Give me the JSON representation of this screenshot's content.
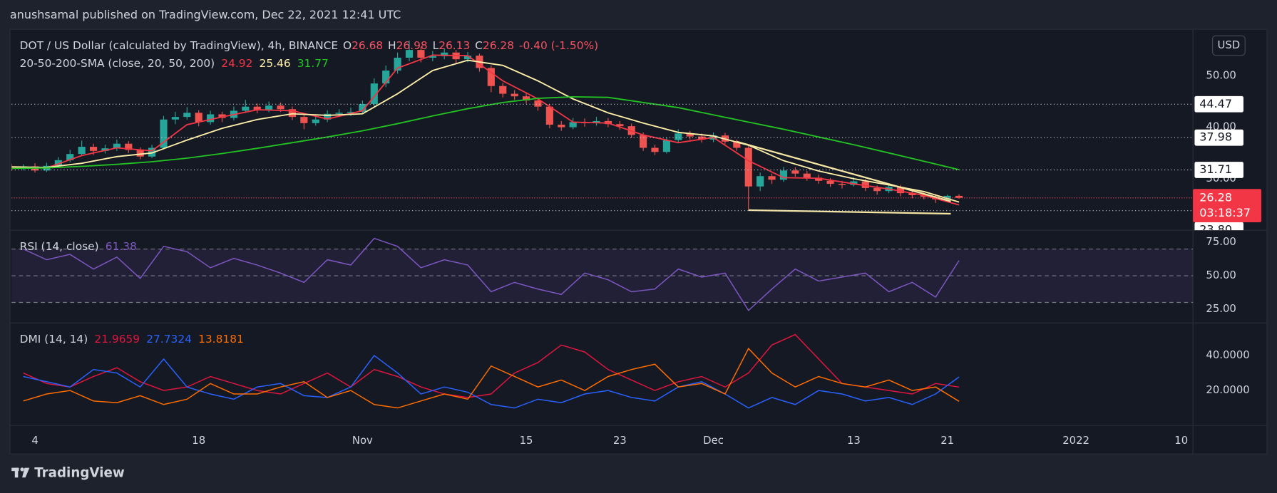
{
  "header": {
    "title": "anushsamal published on TradingView.com, Dec 22, 2021 12:41 UTC"
  },
  "footer": {
    "brand": "TradingView"
  },
  "currency": "USD",
  "chart_data": [
    {
      "type": "candlestick",
      "title": "DOT / US Dollar (calculated by TradingView), 4h, BINANCE",
      "quote_labels": [
        "O",
        "H",
        "L",
        "C"
      ],
      "change": "-0.40 (-1.50%)",
      "countdown": "03:18:37",
      "up_color": "#26a69a",
      "down_color": "#ef5350",
      "xlim": [
        1,
        102
      ],
      "xticks": [
        {
          "value": 3,
          "label": "4"
        },
        {
          "value": 17,
          "label": "18"
        },
        {
          "value": 31,
          "label": "Nov"
        },
        {
          "value": 45,
          "label": "15"
        },
        {
          "value": 53,
          "label": "23"
        },
        {
          "value": 61,
          "label": "Dec"
        },
        {
          "value": 73,
          "label": "13"
        },
        {
          "value": 81,
          "label": "21"
        },
        {
          "value": 92,
          "label": "2022"
        },
        {
          "value": 101,
          "label": "10"
        }
      ],
      "ylim": [
        20,
        58.7
      ],
      "yticks": [
        {
          "value": 30,
          "label": "30.00"
        },
        {
          "value": 40,
          "label": "40.00"
        },
        {
          "value": 50,
          "label": "50.00"
        }
      ],
      "levels": [
        44.47,
        37.98,
        31.71,
        {
          "value": 23.8,
          "label": "23.80"
        }
      ],
      "x": [
        1,
        2,
        3,
        4,
        5,
        6,
        7,
        8,
        9,
        10,
        11,
        12,
        13,
        14,
        15,
        16,
        17,
        18,
        19,
        20,
        21,
        22,
        23,
        24,
        25,
        26,
        27,
        28,
        29,
        30,
        31,
        32,
        33,
        34,
        35,
        36,
        37,
        38,
        39,
        40,
        41,
        42,
        43,
        44,
        45,
        46,
        47,
        48,
        49,
        50,
        51,
        52,
        53,
        54,
        55,
        56,
        57,
        58,
        59,
        60,
        61,
        62,
        63,
        64,
        65,
        66,
        67,
        68,
        69,
        70,
        71,
        72,
        73,
        74,
        75,
        76,
        77,
        78,
        79,
        80,
        81,
        82
      ],
      "candles": [
        [
          32.2,
          32.9,
          31.5,
          32.0
        ],
        [
          32.0,
          32.8,
          31.6,
          32.4
        ],
        [
          32.4,
          33.0,
          31.2,
          31.6
        ],
        [
          31.6,
          33.1,
          31.3,
          32.5
        ],
        [
          32.5,
          34.2,
          32.1,
          33.6
        ],
        [
          33.6,
          35.6,
          33.2,
          34.8
        ],
        [
          34.8,
          37.4,
          34.4,
          36.2
        ],
        [
          36.2,
          36.8,
          34.6,
          35.4
        ],
        [
          35.4,
          36.6,
          34.9,
          35.9
        ],
        [
          35.9,
          37.6,
          35.4,
          36.8
        ],
        [
          36.8,
          37.3,
          35.0,
          35.6
        ],
        [
          35.6,
          36.1,
          33.8,
          34.3
        ],
        [
          34.3,
          36.6,
          34.0,
          36.0
        ],
        [
          36.0,
          42.2,
          35.7,
          41.5
        ],
        [
          41.5,
          43.0,
          40.6,
          42.0
        ],
        [
          42.0,
          43.9,
          41.5,
          42.8
        ],
        [
          42.8,
          43.3,
          40.2,
          41.0
        ],
        [
          41.0,
          43.2,
          40.5,
          42.5
        ],
        [
          42.5,
          43.0,
          41.0,
          41.8
        ],
        [
          41.8,
          44.0,
          41.3,
          43.2
        ],
        [
          43.2,
          45.3,
          42.8,
          44.0
        ],
        [
          44.0,
          44.6,
          42.7,
          43.3
        ],
        [
          43.3,
          45.0,
          42.9,
          44.2
        ],
        [
          44.2,
          44.8,
          43.0,
          43.5
        ],
        [
          43.5,
          44.0,
          41.4,
          42.0
        ],
        [
          42.0,
          42.5,
          39.6,
          40.8
        ],
        [
          40.8,
          42.2,
          40.3,
          41.5
        ],
        [
          41.5,
          43.3,
          41.0,
          42.6
        ],
        [
          42.6,
          43.5,
          42.0,
          42.8
        ],
        [
          42.8,
          43.8,
          42.2,
          43.0
        ],
        [
          43.0,
          45.2,
          42.6,
          44.5
        ],
        [
          44.5,
          49.5,
          44.0,
          48.5
        ],
        [
          48.5,
          52.0,
          47.8,
          51.0
        ],
        [
          51.0,
          54.5,
          50.4,
          53.5
        ],
        [
          53.5,
          56.8,
          52.8,
          55.0
        ],
        [
          55.0,
          55.6,
          52.6,
          53.5
        ],
        [
          53.5,
          54.8,
          52.8,
          53.8
        ],
        [
          53.8,
          55.3,
          53.2,
          54.5
        ],
        [
          54.5,
          55.0,
          52.4,
          53.2
        ],
        [
          53.2,
          54.6,
          52.6,
          53.9
        ],
        [
          53.9,
          54.3,
          50.8,
          51.5
        ],
        [
          51.5,
          52.0,
          46.8,
          48.0
        ],
        [
          48.0,
          48.6,
          45.8,
          46.5
        ],
        [
          46.5,
          47.2,
          45.3,
          46.0
        ],
        [
          46.0,
          46.8,
          44.6,
          45.2
        ],
        [
          45.2,
          45.8,
          43.2,
          44.0
        ],
        [
          44.0,
          44.5,
          39.8,
          40.5
        ],
        [
          40.5,
          41.2,
          39.3,
          40.0
        ],
        [
          40.0,
          41.8,
          39.6,
          41.0
        ],
        [
          41.0,
          41.7,
          40.1,
          40.8
        ],
        [
          40.8,
          42.0,
          40.3,
          41.2
        ],
        [
          41.2,
          41.8,
          40.0,
          40.6
        ],
        [
          40.6,
          41.2,
          39.5,
          40.2
        ],
        [
          40.2,
          40.7,
          37.9,
          38.5
        ],
        [
          38.5,
          39.0,
          35.4,
          36.0
        ],
        [
          36.0,
          36.6,
          34.6,
          35.2
        ],
        [
          35.2,
          38.1,
          34.9,
          37.5
        ],
        [
          37.5,
          39.6,
          37.0,
          38.8
        ],
        [
          38.8,
          39.3,
          37.6,
          38.2
        ],
        [
          38.2,
          38.8,
          37.0,
          37.6
        ],
        [
          37.6,
          39.0,
          37.1,
          38.4
        ],
        [
          38.4,
          38.9,
          36.7,
          37.2
        ],
        [
          37.2,
          37.6,
          35.4,
          36.0
        ],
        [
          36.0,
          36.4,
          24.0,
          28.5
        ],
        [
          28.5,
          31.2,
          27.6,
          30.5
        ],
        [
          30.5,
          31.0,
          29.0,
          29.8
        ],
        [
          29.8,
          32.3,
          29.4,
          31.6
        ],
        [
          31.6,
          32.2,
          30.4,
          31.0
        ],
        [
          31.0,
          31.5,
          29.6,
          30.2
        ],
        [
          30.2,
          30.8,
          29.0,
          29.6
        ],
        [
          29.6,
          30.1,
          28.4,
          29.0
        ],
        [
          29.0,
          29.6,
          28.1,
          28.8
        ],
        [
          28.8,
          30.3,
          28.5,
          29.5
        ],
        [
          29.5,
          29.9,
          27.6,
          28.2
        ],
        [
          28.2,
          28.7,
          26.9,
          27.6
        ],
        [
          27.6,
          29.0,
          27.2,
          28.4
        ],
        [
          28.4,
          28.8,
          26.6,
          27.2
        ],
        [
          27.2,
          27.6,
          26.2,
          26.8
        ],
        [
          26.8,
          27.3,
          26.0,
          26.5
        ],
        [
          26.5,
          27.0,
          25.3,
          26.0
        ],
        [
          26.0,
          26.9,
          25.7,
          26.68
        ],
        [
          26.68,
          26.98,
          26.13,
          26.28
        ]
      ],
      "indicator": {
        "name": "20-50-200-SMA (close, 20, 50, 200)",
        "x": [
          1,
          4,
          7,
          10,
          13,
          16,
          19,
          22,
          25,
          28,
          31,
          34,
          37,
          40,
          43,
          46,
          49,
          52,
          55,
          58,
          61,
          64,
          67,
          70,
          73,
          76,
          79,
          82
        ],
        "series": [
          {
            "color": "#f23645",
            "values": [
              32.2,
              32.1,
              34.5,
              36.0,
              35.4,
              40.5,
              42.0,
              43.4,
              43.2,
              41.6,
              43.2,
              51.5,
              54.0,
              53.9,
              49.0,
              45.5,
              41.0,
              40.8,
              38.5,
              37.0,
              38.0,
              33.5,
              30.2,
              30.1,
              29.0,
              28.0,
              26.8,
              24.92
            ]
          },
          {
            "color": "#fff0a8",
            "values": [
              32.3,
              32.2,
              33.0,
              34.3,
              35.0,
              37.5,
              39.8,
              41.5,
              42.6,
              42.3,
              42.6,
              46.5,
              51.0,
              53.0,
              52.0,
              49.0,
              45.5,
              42.8,
              40.8,
              39.0,
              38.3,
              36.5,
              33.5,
              31.5,
              30.0,
              28.8,
              27.5,
              25.46
            ]
          },
          {
            "color": "#22c322",
            "values": [
              32.0,
              32.1,
              32.4,
              32.8,
              33.3,
              34.0,
              34.9,
              35.9,
              37.0,
              38.1,
              39.3,
              40.7,
              42.2,
              43.6,
              44.8,
              45.6,
              45.9,
              45.8,
              44.8,
              43.8,
              42.4,
              41.0,
              39.6,
              38.1,
              36.6,
              35.0,
              33.4,
              31.77
            ]
          }
        ]
      },
      "drawings": [
        {
          "color": "#f5e6a3",
          "x": [
            63,
            81.3
          ],
          "values": [
            37.2,
            25.6
          ]
        },
        {
          "color": "#f5e6a3",
          "x": [
            64,
            81.3
          ],
          "values": [
            23.9,
            23.2
          ]
        }
      ]
    },
    {
      "type": "line",
      "name": "RSI (14, close)",
      "ylim": [
        14.6,
        84.1
      ],
      "yticks": [
        {
          "value": 25,
          "label": "25.00"
        },
        {
          "value": 50,
          "label": "50.00"
        },
        {
          "value": 75,
          "label": "75.00"
        }
      ],
      "band": [
        30,
        70
      ],
      "hlines": [
        70,
        50,
        30
      ],
      "x": [
        2,
        4,
        6,
        8,
        10,
        12,
        14,
        16,
        18,
        20,
        22,
        24,
        26,
        28,
        30,
        32,
        34,
        36,
        38,
        40,
        42,
        44,
        46,
        48,
        50,
        52,
        54,
        56,
        58,
        60,
        62,
        64,
        66,
        68,
        70,
        72,
        74,
        76,
        78,
        80,
        82
      ],
      "series": [
        {
          "color": "#7e57c2",
          "values": [
            70,
            62,
            66,
            55,
            64,
            48,
            72,
            68,
            56,
            63,
            58,
            52,
            45,
            62,
            58,
            78,
            72,
            56,
            62,
            58,
            38,
            45,
            40,
            36,
            52,
            47,
            38,
            40,
            55,
            49,
            52,
            24,
            40,
            55,
            46,
            49,
            52,
            38,
            45,
            34,
            61.38
          ]
        }
      ]
    },
    {
      "type": "line",
      "name": "DMI (14, 14)",
      "ylim": [
        0,
        58.6
      ],
      "yticks": [
        {
          "value": 20,
          "label": "20.0000"
        },
        {
          "value": 40,
          "label": "40.0000"
        }
      ],
      "x": [
        2,
        4,
        6,
        8,
        10,
        12,
        14,
        16,
        18,
        20,
        22,
        24,
        26,
        28,
        30,
        32,
        34,
        36,
        38,
        40,
        42,
        44,
        46,
        48,
        50,
        52,
        54,
        56,
        58,
        60,
        62,
        64,
        66,
        68,
        70,
        72,
        74,
        76,
        78,
        80,
        82
      ],
      "series": [
        {
          "color": "#e0163f",
          "values": [
            30,
            24,
            22,
            28,
            33,
            25,
            20,
            22,
            28,
            24,
            20,
            18,
            24,
            30,
            22,
            32,
            28,
            22,
            18,
            16,
            18,
            30,
            36,
            46,
            42,
            32,
            26,
            20,
            25,
            28,
            22,
            30,
            46,
            52,
            38,
            24,
            22,
            20,
            18,
            24,
            21.9659
          ]
        },
        {
          "color": "#2962ff",
          "values": [
            28,
            25,
            22,
            32,
            30,
            22,
            38,
            22,
            18,
            15,
            22,
            24,
            17,
            16,
            22,
            40,
            30,
            18,
            22,
            19,
            12,
            10,
            15,
            13,
            18,
            20,
            16,
            14,
            22,
            25,
            18,
            10,
            16,
            12,
            20,
            18,
            14,
            16,
            12,
            18,
            27.7324
          ]
        },
        {
          "color": "#ff6d00",
          "values": [
            14,
            18,
            20,
            14,
            13,
            17,
            12,
            15,
            24,
            18,
            18,
            22,
            25,
            16,
            20,
            12,
            10,
            14,
            18,
            15,
            34,
            28,
            22,
            26,
            20,
            28,
            32,
            35,
            22,
            24,
            18,
            44,
            30,
            22,
            28,
            24,
            22,
            26,
            20,
            22,
            13.8181
          ]
        }
      ]
    }
  ]
}
